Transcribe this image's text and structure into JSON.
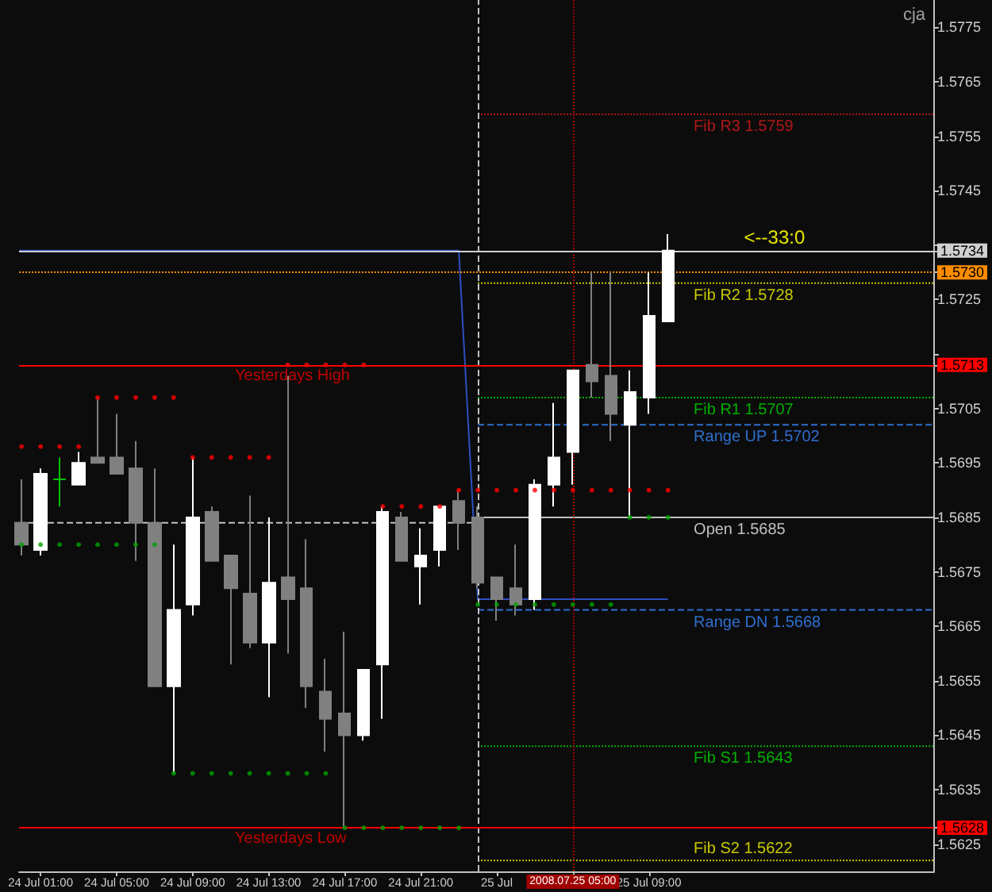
{
  "chart_data": {
    "type": "candlestick",
    "x": [
      "2008-07-24T00:00",
      "2008-07-24T01:00",
      "2008-07-24T02:00",
      "2008-07-24T03:00",
      "2008-07-24T04:00",
      "2008-07-24T05:00",
      "2008-07-24T06:00",
      "2008-07-24T07:00",
      "2008-07-24T08:00",
      "2008-07-24T09:00",
      "2008-07-24T10:00",
      "2008-07-24T11:00",
      "2008-07-24T12:00",
      "2008-07-24T13:00",
      "2008-07-24T14:00",
      "2008-07-24T15:00",
      "2008-07-24T16:00",
      "2008-07-24T17:00",
      "2008-07-24T18:00",
      "2008-07-24T19:00",
      "2008-07-24T20:00",
      "2008-07-24T21:00",
      "2008-07-24T22:00",
      "2008-07-24T23:00",
      "2008-07-25T00:00",
      "2008-07-25T01:00",
      "2008-07-25T02:00",
      "2008-07-25T03:00",
      "2008-07-25T04:00",
      "2008-07-25T05:00",
      "2008-07-25T06:00",
      "2008-07-25T07:00",
      "2008-07-25T08:00",
      "2008-07-25T09:00",
      "2008-07-25T10:00"
    ],
    "ohlc": [
      [
        1.5684,
        1.5692,
        1.5678,
        1.568
      ],
      [
        1.5679,
        1.5694,
        1.5678,
        1.5693
      ],
      [
        1.5692,
        1.5696,
        1.5687,
        1.5692
      ],
      [
        1.5691,
        1.5697,
        1.5691,
        1.5695
      ],
      [
        1.5696,
        1.5707,
        1.5695,
        1.5695
      ],
      [
        1.5696,
        1.5704,
        1.5693,
        1.5693
      ],
      [
        1.5694,
        1.5699,
        1.5677,
        1.5684
      ],
      [
        1.5684,
        1.5694,
        1.5654,
        1.5654
      ],
      [
        1.5654,
        1.568,
        1.5638,
        1.5668
      ],
      [
        1.5669,
        1.5696,
        1.5667,
        1.5685
      ],
      [
        1.5686,
        1.5687,
        1.5677,
        1.5677
      ],
      [
        1.5678,
        1.5678,
        1.5658,
        1.5672
      ],
      [
        1.5671,
        1.5689,
        1.5661,
        1.5662
      ],
      [
        1.5662,
        1.5685,
        1.5652,
        1.5673
      ],
      [
        1.5674,
        1.5711,
        1.566,
        1.567
      ],
      [
        1.5672,
        1.5681,
        1.565,
        1.5654
      ],
      [
        1.5653,
        1.5659,
        1.5642,
        1.5648
      ],
      [
        1.5649,
        1.5664,
        1.5628,
        1.5645
      ],
      [
        1.5645,
        1.5657,
        1.5644,
        1.5657
      ],
      [
        1.5658,
        1.5687,
        1.5648,
        1.5686
      ],
      [
        1.5685,
        1.5686,
        1.5677,
        1.5677
      ],
      [
        1.5676,
        1.5683,
        1.5669,
        1.5678
      ],
      [
        1.5679,
        1.5687,
        1.5676,
        1.5687
      ],
      [
        1.5688,
        1.569,
        1.5679,
        1.5684
      ],
      [
        1.5685,
        1.5687,
        1.5672,
        1.5673
      ],
      [
        1.5674,
        1.5674,
        1.5666,
        1.567
      ],
      [
        1.5672,
        1.568,
        1.5667,
        1.5669
      ],
      [
        1.567,
        1.5692,
        1.5668,
        1.5691
      ],
      [
        1.5691,
        1.5706,
        1.5687,
        1.5696
      ],
      [
        1.5697,
        1.5712,
        1.5691,
        1.5712
      ],
      [
        1.5713,
        1.573,
        1.5707,
        1.571
      ],
      [
        1.5711,
        1.573,
        1.5699,
        1.5704
      ],
      [
        1.5702,
        1.5712,
        1.5685,
        1.5708
      ],
      [
        1.5707,
        1.573,
        1.5704,
        1.5722
      ],
      [
        1.5721,
        1.5737,
        1.5721,
        1.5734
      ]
    ],
    "colors": [
      "#808080",
      "#ffffff",
      "#00c000",
      "#ffffff",
      "#808080",
      "#808080",
      "#808080",
      "#808080",
      "#ffffff",
      "#ffffff",
      "#808080",
      "#808080",
      "#808080",
      "#ffffff",
      "#808080",
      "#808080",
      "#808080",
      "#808080",
      "#ffffff",
      "#ffffff",
      "#808080",
      "#ffffff",
      "#ffffff",
      "#808080",
      "#808080",
      "#808080",
      "#808080",
      "#ffffff",
      "#ffffff",
      "#ffffff",
      "#808080",
      "#808080",
      "#ffffff",
      "#ffffff",
      "#ffffff"
    ],
    "series": [
      {
        "type": "scatter",
        "marker": "circle",
        "color": "#ff0000",
        "values": [
          1.5698,
          1.5698,
          1.5698,
          1.5698,
          1.5707,
          1.5707,
          1.5707,
          1.5707,
          1.5707,
          1.5696,
          1.5696,
          1.5696,
          1.5696,
          1.5696,
          1.5713,
          1.5713,
          1.5713,
          1.5713,
          1.5713,
          1.5687,
          1.5687,
          1.5687,
          1.5687,
          1.569,
          1.569,
          1.569,
          1.569,
          1.569,
          1.569,
          1.569,
          1.569,
          1.569,
          1.569,
          1.569,
          1.569
        ]
      },
      {
        "type": "scatter",
        "marker": "circle",
        "color": "#00a000",
        "values": [
          1.568,
          1.568,
          1.568,
          1.568,
          1.568,
          1.568,
          1.568,
          1.568,
          1.5638,
          1.5638,
          1.5638,
          1.5638,
          1.5638,
          1.5638,
          1.5638,
          1.5638,
          1.5638,
          1.5628,
          1.5628,
          1.5628,
          1.5628,
          1.5628,
          1.5628,
          1.5628,
          1.5669,
          1.5669,
          1.5669,
          1.5669,
          1.5669,
          1.5669,
          1.5669,
          1.5669,
          1.5685,
          1.5685,
          1.5685
        ]
      },
      {
        "type": "line",
        "color": "#2f4fbf",
        "line_style": "solid",
        "x": [
          "2008-07-23T23:52",
          "2008-07-24T23:00",
          "2008-07-25T00:00",
          "2008-07-25T10:00"
        ],
        "values": [
          1.5734,
          1.5734,
          1.567,
          1.567
        ]
      },
      {
        "type": "line",
        "color": "#c0c0c0",
        "line_style": "dashed",
        "x": [
          "2008-07-23T23:52",
          "2008-07-25T00:00"
        ],
        "values": [
          1.5684,
          1.5684
        ]
      },
      {
        "type": "line",
        "name": "Fib R3 1.5759",
        "color": "#b01818",
        "line_style": "dotted",
        "x": [
          "2008-07-25T00:00",
          "2008-07-26T00:00"
        ],
        "values": [
          1.5759,
          1.5759
        ]
      },
      {
        "type": "line",
        "name": "Fib R2 1.5728",
        "color": "#c8c800",
        "line_style": "dotted",
        "x": [
          "2008-07-25T00:00",
          "2008-07-26T00:00"
        ],
        "values": [
          1.5728,
          1.5728
        ]
      },
      {
        "type": "line",
        "name": "Fib R1 1.5707",
        "color": "#00b000",
        "line_style": "dotted",
        "x": [
          "2008-07-25T00:00",
          "2008-07-26T00:00"
        ],
        "values": [
          1.5707,
          1.5707
        ]
      },
      {
        "type": "line",
        "name": "Range UP 1.5702",
        "color": "#2f6fcf",
        "line_style": "dashed",
        "x": [
          "2008-07-25T00:00",
          "2008-07-26T00:00"
        ],
        "values": [
          1.5702,
          1.5702
        ]
      },
      {
        "type": "line",
        "name": "Open 1.5685",
        "color": "#c0c0c0",
        "line_style": "solid",
        "x": [
          "2008-07-25T00:00",
          "2008-07-26T00:00"
        ],
        "values": [
          1.5685,
          1.5685
        ]
      },
      {
        "type": "line",
        "name": "Range DN 1.5668",
        "color": "#2f6fcf",
        "line_style": "dashed",
        "x": [
          "2008-07-25T00:00",
          "2008-07-26T00:00"
        ],
        "values": [
          1.5668,
          1.5668
        ]
      },
      {
        "type": "line",
        "name": "Fib S1 1.5643",
        "color": "#00b000",
        "line_style": "dotted",
        "x": [
          "2008-07-25T00:00",
          "2008-07-26T00:00"
        ],
        "values": [
          1.5643,
          1.5643
        ]
      },
      {
        "type": "line",
        "name": "Fib S2 1.5622",
        "color": "#c8c800",
        "line_style": "dotted",
        "x": [
          "2008-07-25T00:00",
          "2008-07-26T00:00"
        ],
        "values": [
          1.5622,
          1.5622
        ]
      }
    ],
    "ref_lines": [
      {
        "axis": "x",
        "value": "2008-07-25T00:00",
        "label": null,
        "color": "#c0c0c0",
        "line_style": "dashed"
      },
      {
        "axis": "x",
        "value": "2008-07-25T05:00",
        "label": "2008.07.25 05:00",
        "color": "#a00000",
        "line_style": "dotted"
      },
      {
        "axis": "y",
        "value": 1.5734,
        "label": null,
        "color": "#d0d0d0",
        "line_style": "solid"
      },
      {
        "axis": "y",
        "value": 1.573,
        "label": null,
        "color": "#ff8c00",
        "line_style": "dotted"
      },
      {
        "axis": "y",
        "value": 1.5713,
        "label": "Yesterdays High",
        "color": "#ff0000",
        "line_style": "solid"
      },
      {
        "axis": "y",
        "value": 1.5628,
        "label": "Yesterdays Low",
        "color": "#ff0000",
        "line_style": "solid"
      }
    ],
    "annotations": [
      "cja",
      "<--33:0"
    ],
    "xlim": [
      "2008-07-23T23:52",
      "2008-07-26T00:00"
    ],
    "xticks": [
      {
        "value": "2008-07-24T01:00",
        "label": "24 Jul 01:00"
      },
      {
        "value": "2008-07-24T05:00",
        "label": "24 Jul 05:00"
      },
      {
        "value": "2008-07-24T09:00",
        "label": "24 Jul 09:00"
      },
      {
        "value": "2008-07-24T13:00",
        "label": "24 Jul 13:00"
      },
      {
        "value": "2008-07-24T17:00",
        "label": "24 Jul 17:00"
      },
      {
        "value": "2008-07-24T21:00",
        "label": "24 Jul 21:00"
      },
      {
        "value": "2008-07-25T01:00",
        "label": "25 Jul"
      },
      {
        "value": "2008-07-25T05:00",
        "label": null
      },
      {
        "value": "2008-07-25T09:00",
        "label": "25 Jul 09:00"
      }
    ],
    "ylim": [
      1.562,
      1.578
    ],
    "yticks": [
      1.5625,
      1.5628,
      1.5635,
      1.5645,
      1.5655,
      1.5665,
      1.5675,
      1.5685,
      1.5695,
      1.5705,
      1.5713,
      {
        "value": 1.5715,
        "label": null
      },
      1.5725,
      {
        "value": 1.573,
        "label": "1.5730"
      },
      1.5734,
      {
        "value": 1.5735,
        "label": null
      },
      1.5745,
      1.5755,
      1.5765,
      1.5775
    ]
  }
}
